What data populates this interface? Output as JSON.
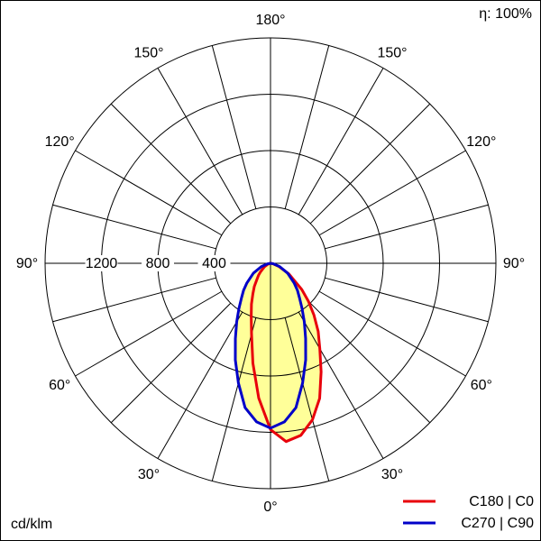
{
  "chart_data": {
    "type": "polar",
    "efficiency_label": "η: 100%",
    "unit_label": "cd/klm",
    "x": [
      -90,
      -80,
      -70,
      -60,
      -50,
      -45,
      -40,
      -35,
      -30,
      -25,
      -20,
      -15,
      -10,
      -5,
      0,
      5,
      10,
      15,
      20,
      25,
      30,
      35,
      40,
      45,
      50,
      60,
      70,
      80,
      90
    ],
    "series": [
      {
        "name": "C180 | C0",
        "color": "#e8000b",
        "values": [
          0,
          5,
          20,
          50,
          90,
          120,
          150,
          200,
          250,
          320,
          400,
          520,
          720,
          960,
          1180,
          1270,
          1240,
          1150,
          1020,
          850,
          700,
          590,
          480,
          380,
          290,
          150,
          60,
          15,
          0
        ]
      },
      {
        "name": "C270 | C90",
        "color": "#0000c8",
        "values": [
          0,
          20,
          70,
          140,
          220,
          270,
          320,
          390,
          480,
          590,
          730,
          880,
          1040,
          1130,
          1170,
          1130,
          1040,
          880,
          730,
          590,
          480,
          390,
          320,
          270,
          220,
          140,
          70,
          20,
          0
        ]
      }
    ],
    "fill_color": "#ffff99",
    "rlim": [
      0,
      1600
    ],
    "rticks": [
      400,
      800,
      1200
    ],
    "angle_grid_step": 15,
    "xticks": [
      {
        "value": -150,
        "label": "150°"
      },
      {
        "value": -120,
        "label": "120°"
      },
      {
        "value": -90,
        "label": "90°"
      },
      {
        "value": -60,
        "label": "60°"
      },
      {
        "value": -30,
        "label": "30°"
      },
      {
        "value": 0,
        "label": "0°"
      },
      {
        "value": 30,
        "label": "30°"
      },
      {
        "value": 60,
        "label": "60°"
      },
      {
        "value": 90,
        "label": "90°"
      },
      {
        "value": 120,
        "label": "120°"
      },
      {
        "value": 150,
        "label": "150°"
      },
      {
        "value": 180,
        "label": "180°"
      }
    ]
  }
}
